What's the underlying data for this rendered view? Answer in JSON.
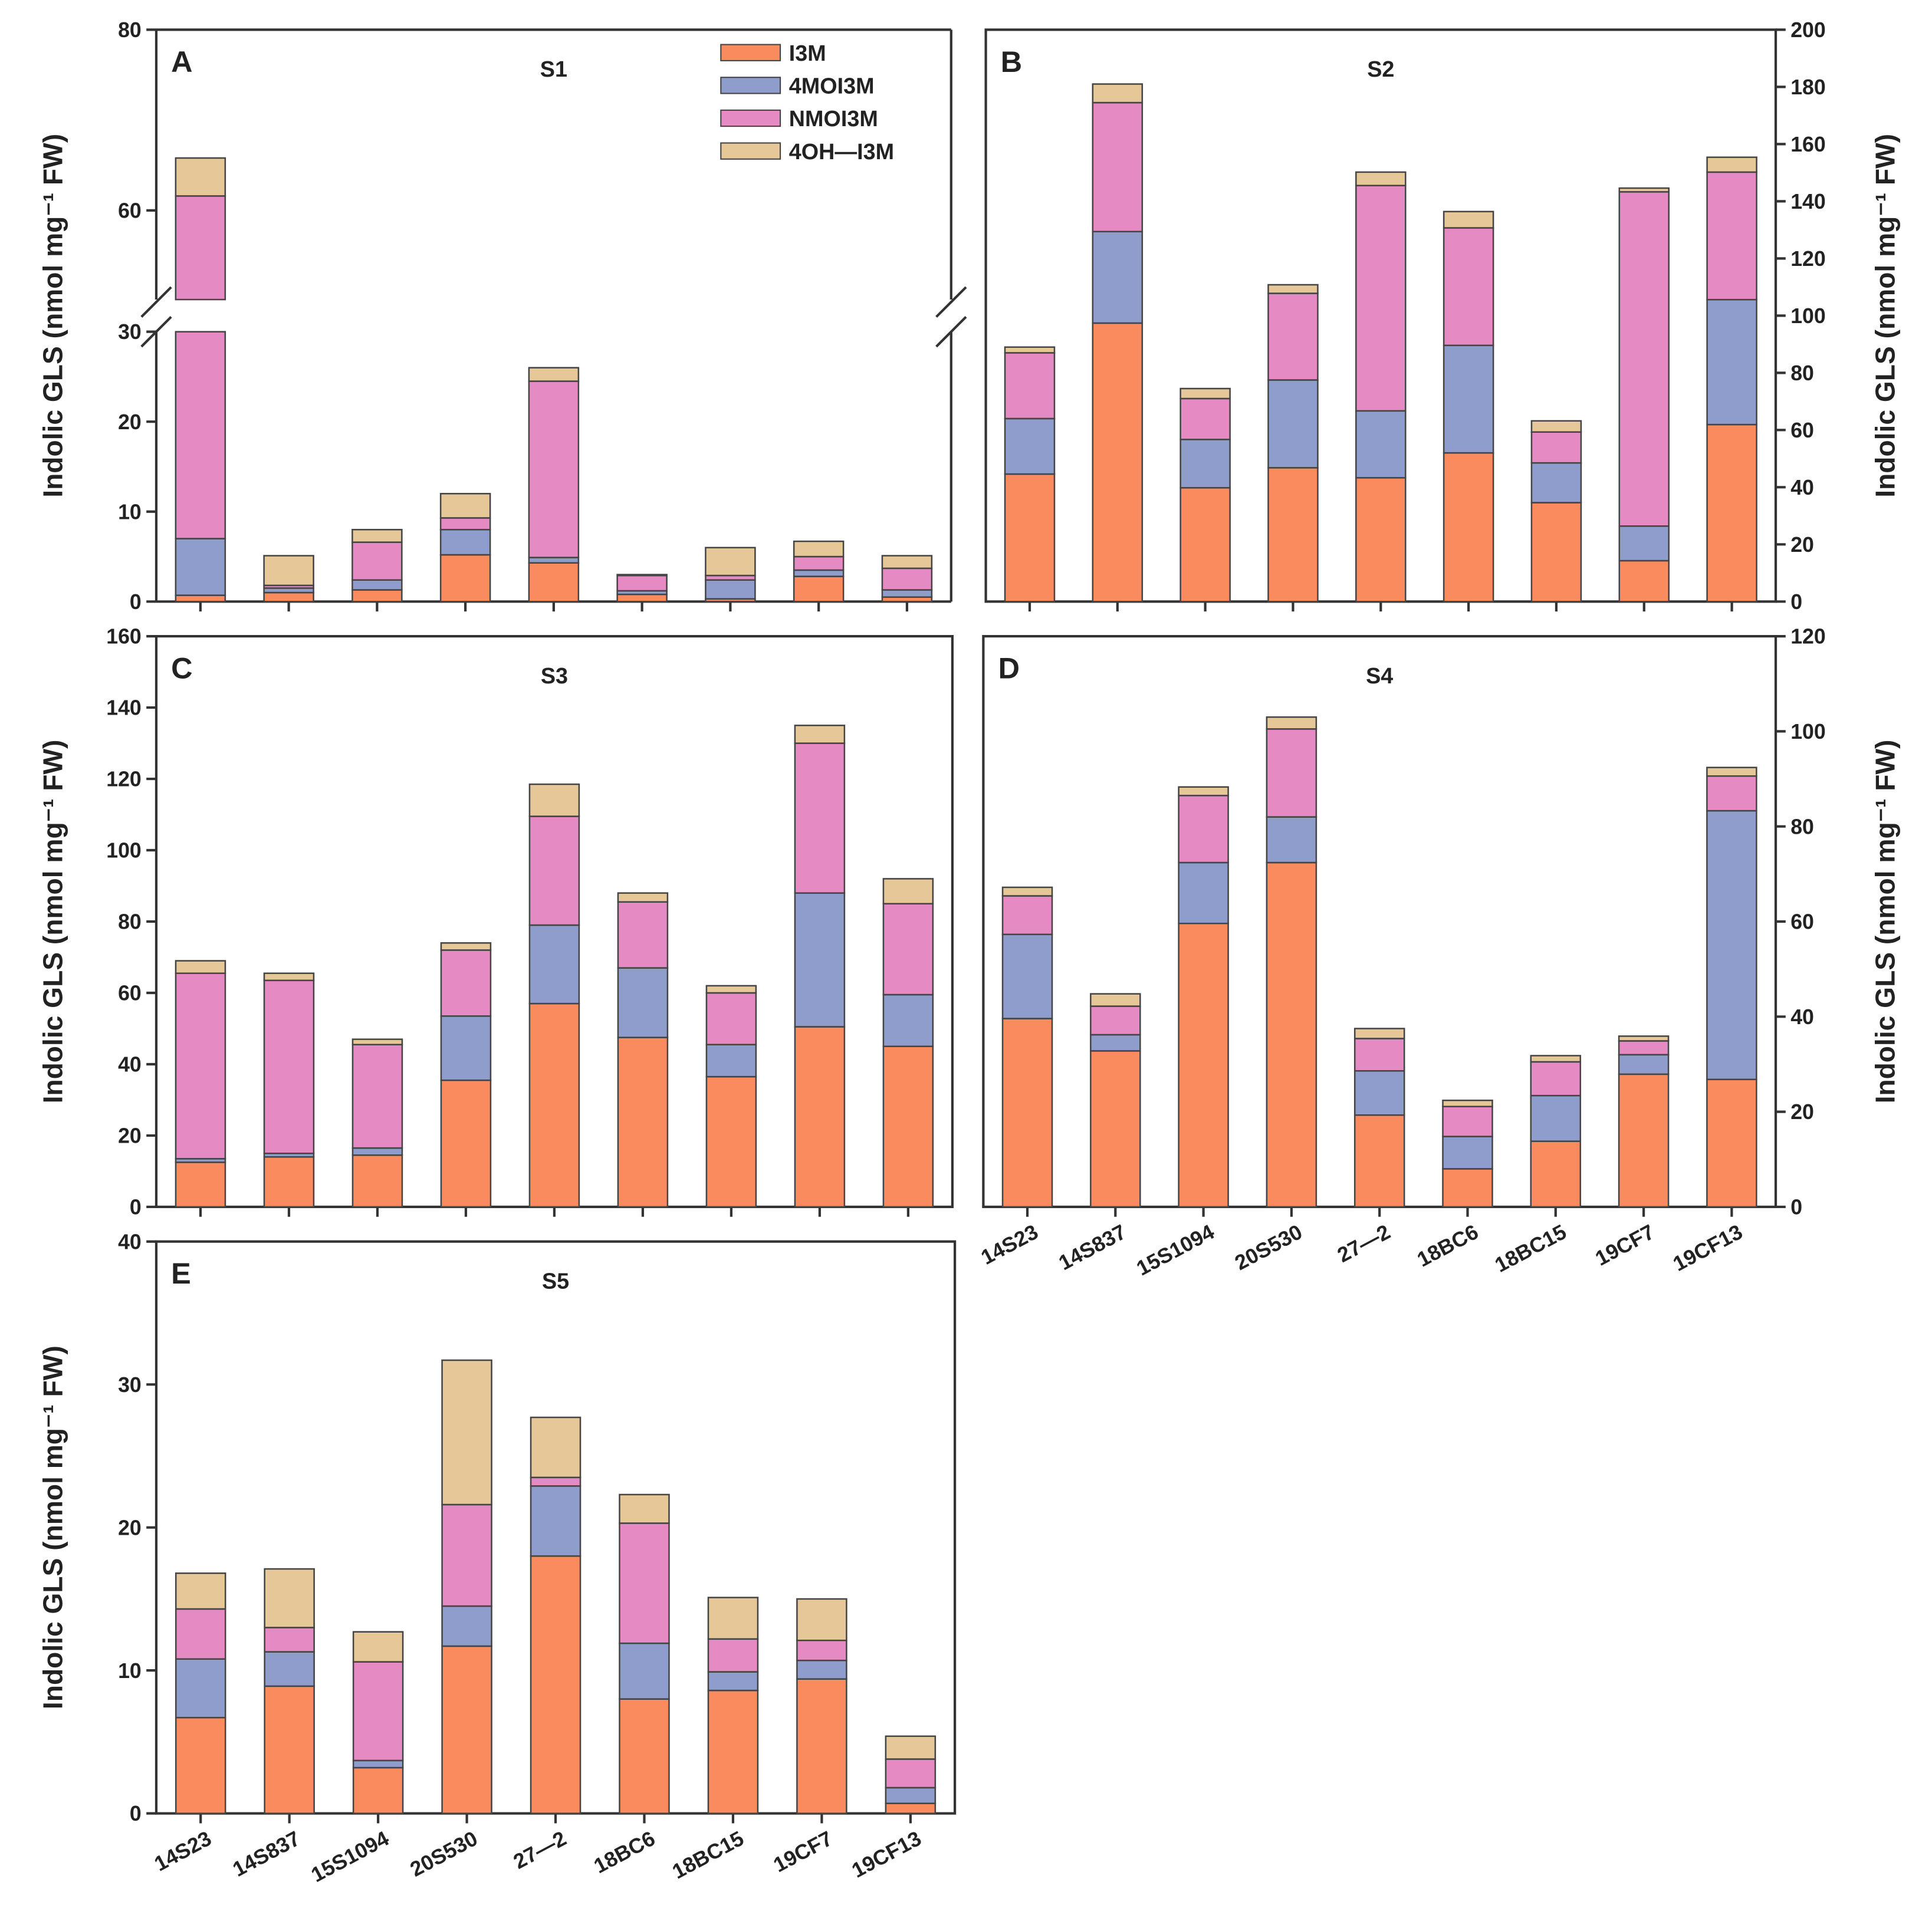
{
  "chart_data": {
    "type": "bar",
    "stacked": true,
    "categories": [
      "14S23",
      "14S837",
      "15S1094",
      "20S530",
      "27—2",
      "18BC6",
      "18BC15",
      "19CF7",
      "19CF13"
    ],
    "legend": {
      "entries": [
        "I3M",
        "4MOI3M",
        "NMOI3M",
        "4OH—I3M"
      ],
      "colors": [
        "#F98B5F",
        "#8E9DCC",
        "#E68AC3",
        "#E6C797"
      ],
      "placement": "top-right of panel A"
    },
    "ylabel": "Indolic GLS (nmol mg⁻¹ FW)",
    "panels": [
      {
        "letter": "A",
        "title": "S1",
        "ylim": [
          0,
          80
        ],
        "axis_break": [
          30,
          50
        ],
        "yticks": [
          0,
          10,
          20,
          30,
          60,
          80
        ],
        "axis_side": "left",
        "series": [
          {
            "name": "I3M",
            "values": [
              0.7,
              1.0,
              1.3,
              5.2,
              4.3,
              0.8,
              0.3,
              2.8,
              0.5
            ]
          },
          {
            "name": "4MOI3M",
            "values": [
              6.3,
              0.5,
              1.1,
              2.8,
              0.6,
              0.4,
              2.1,
              0.7,
              0.8
            ]
          },
          {
            "name": "NMOI3M",
            "values": [
              54.6,
              0.3,
              4.2,
              1.3,
              19.6,
              1.7,
              0.5,
              1.5,
              2.4
            ]
          },
          {
            "name": "4OH—I3M",
            "values": [
              4.2,
              3.3,
              1.4,
              2.7,
              1.5,
              0.1,
              3.1,
              1.7,
              1.4
            ]
          }
        ]
      },
      {
        "letter": "B",
        "title": "S2",
        "ylim": [
          0,
          200
        ],
        "yticks": [
          0,
          20,
          40,
          60,
          80,
          100,
          120,
          140,
          160,
          180,
          200
        ],
        "axis_side": "right",
        "series": [
          {
            "name": "I3M",
            "values": [
              44.6,
              97.4,
              39.8,
              46.8,
              43.3,
              52.0,
              34.6,
              14.3,
              61.9
            ]
          },
          {
            "name": "4MOI3M",
            "values": [
              19.4,
              32.0,
              16.9,
              30.7,
              23.4,
              37.6,
              13.9,
              12.1,
              43.7
            ]
          },
          {
            "name": "NMOI3M",
            "values": [
              23.0,
              45.1,
              14.3,
              30.3,
              78.8,
              41.1,
              10.8,
              116.9,
              44.6
            ]
          },
          {
            "name": "4OH—I3M",
            "values": [
              2.0,
              6.5,
              3.5,
              3.0,
              4.7,
              5.7,
              3.9,
              1.3,
              5.2
            ]
          }
        ]
      },
      {
        "letter": "C",
        "title": "S3",
        "ylim": [
          0,
          160
        ],
        "yticks": [
          0,
          20,
          40,
          60,
          80,
          100,
          120,
          140,
          160
        ],
        "axis_side": "left",
        "series": [
          {
            "name": "I3M",
            "values": [
              12.5,
              14.0,
              14.5,
              35.5,
              57.0,
              47.5,
              36.5,
              50.5,
              45.0
            ]
          },
          {
            "name": "4MOI3M",
            "values": [
              1.0,
              1.0,
              2.0,
              18.0,
              22.0,
              19.5,
              9.0,
              37.5,
              14.5
            ]
          },
          {
            "name": "NMOI3M",
            "values": [
              52.0,
              48.5,
              29.0,
              18.5,
              30.5,
              18.5,
              14.5,
              42.0,
              25.5
            ]
          },
          {
            "name": "4OH—I3M",
            "values": [
              3.5,
              2.0,
              1.5,
              2.0,
              9.0,
              2.5,
              2.0,
              5.0,
              7.0
            ]
          }
        ]
      },
      {
        "letter": "D",
        "title": "S4",
        "ylim": [
          0,
          120
        ],
        "yticks": [
          0,
          20,
          40,
          60,
          80,
          100,
          120
        ],
        "axis_side": "right",
        "series": [
          {
            "name": "I3M",
            "values": [
              39.6,
              32.8,
              59.6,
              72.4,
              19.3,
              8.0,
              13.8,
              27.9,
              26.8
            ]
          },
          {
            "name": "4MOI3M",
            "values": [
              17.7,
              3.4,
              12.8,
              9.6,
              9.3,
              6.8,
              9.6,
              4.1,
              56.5
            ]
          },
          {
            "name": "NMOI3M",
            "values": [
              8.1,
              6.0,
              14.1,
              18.5,
              6.8,
              6.3,
              7.1,
              2.9,
              7.3
            ]
          },
          {
            "name": "4OH—I3M",
            "values": [
              1.8,
              2.6,
              1.8,
              2.5,
              2.1,
              1.3,
              1.3,
              1.0,
              1.8
            ]
          }
        ]
      },
      {
        "letter": "E",
        "title": "S5",
        "ylim": [
          0,
          40
        ],
        "yticks": [
          0,
          10,
          20,
          30,
          40
        ],
        "axis_side": "left",
        "series": [
          {
            "name": "I3M",
            "values": [
              6.7,
              8.9,
              3.2,
              11.7,
              18.0,
              8.0,
              8.6,
              9.4,
              0.7
            ]
          },
          {
            "name": "4MOI3M",
            "values": [
              4.1,
              2.4,
              0.5,
              2.8,
              4.9,
              3.9,
              1.3,
              1.3,
              1.1
            ]
          },
          {
            "name": "NMOI3M",
            "values": [
              3.5,
              1.7,
              6.9,
              7.1,
              0.6,
              8.4,
              2.3,
              1.4,
              2.0
            ]
          },
          {
            "name": "4OH—I3M",
            "values": [
              2.5,
              4.1,
              2.1,
              10.1,
              4.2,
              2.0,
              2.9,
              2.9,
              1.6
            ]
          }
        ]
      }
    ]
  }
}
